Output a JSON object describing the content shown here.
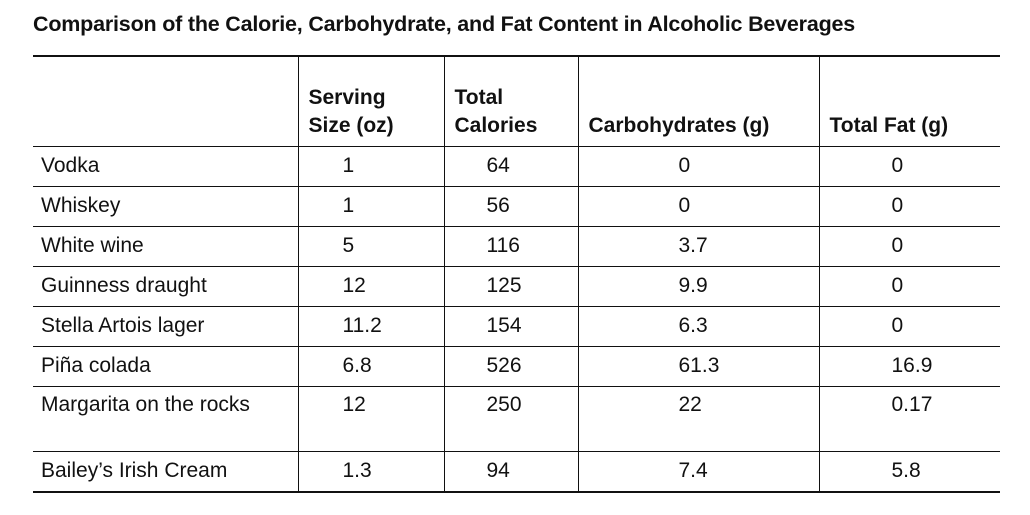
{
  "title": "Comparison of the Calorie, Carbohydrate, and Fat Content in Alcoholic Beverages",
  "table": {
    "headers": {
      "beverage": "",
      "serving_line1": "Serving",
      "serving_line2": "Size (oz)",
      "calories_line1": "Total",
      "calories_line2": "Calories",
      "carbs": "Carbohydrates (g)",
      "fat": "Total Fat (g)"
    },
    "rows": [
      {
        "beverage": "Vodka",
        "serving": "1",
        "calories": "64",
        "carbs": "0",
        "fat": "0"
      },
      {
        "beverage": "Whiskey",
        "serving": "1",
        "calories": "56",
        "carbs": "0",
        "fat": "0"
      },
      {
        "beverage": "White wine",
        "serving": "5",
        "calories": "116",
        "carbs": "3.7",
        "fat": "0"
      },
      {
        "beverage": "Guinness draught",
        "serving": "12",
        "calories": "125",
        "carbs": "9.9",
        "fat": "0"
      },
      {
        "beverage": "Stella Artois lager",
        "serving": "11.2",
        "calories": "154",
        "carbs": "6.3",
        "fat": "0"
      },
      {
        "beverage": "Piña colada",
        "serving": "6.8",
        "calories": "526",
        "carbs": "61.3",
        "fat": "16.9"
      },
      {
        "beverage": "Margarita on the rocks",
        "serving": "12",
        "calories": "250",
        "carbs": "22",
        "fat": "0.17"
      },
      {
        "beverage": "Bailey’s Irish Cream",
        "serving": "1.3",
        "calories": "94",
        "carbs": "7.4",
        "fat": "5.8"
      }
    ]
  }
}
